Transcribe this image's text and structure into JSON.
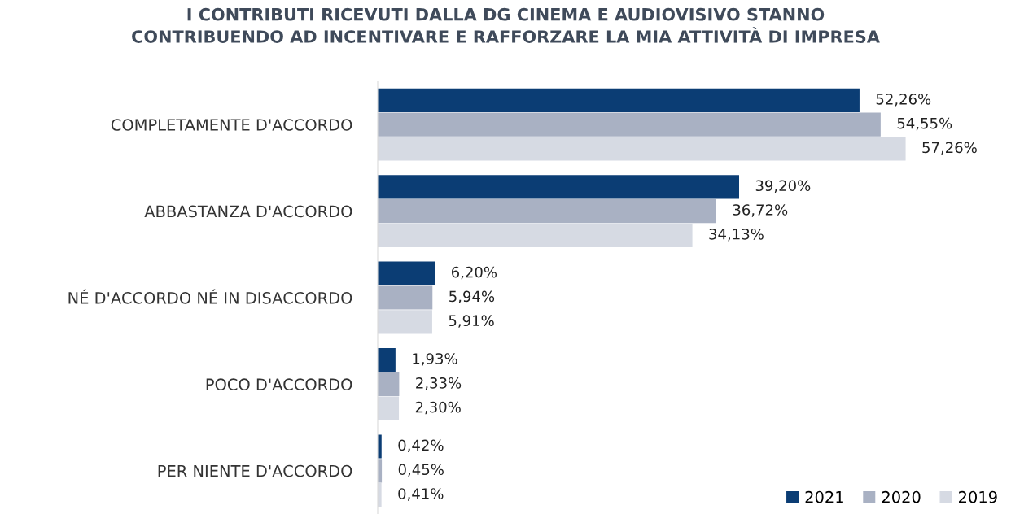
{
  "chart_data": {
    "type": "bar",
    "orientation": "horizontal",
    "title": "I CONTRIBUTI RICEVUTI DALLA DG CINEMA E AUDIOVISIVO STANNO\nCONTRIBUENDO AD INCENTIVARE E RAFFORZARE LA MIA ATTIVITÀ DI IMPRESA",
    "categories": [
      "COMPLETAMENTE D'ACCORDO",
      "ABBASTANZA D'ACCORDO",
      "NÉ D'ACCORDO NÉ IN DISACCORDO",
      "POCO D'ACCORDO",
      "PER NIENTE D'ACCORDO"
    ],
    "series": [
      {
        "name": "2021",
        "color": "#0b3d74",
        "values": [
          52.26,
          39.2,
          6.2,
          1.93,
          0.42
        ],
        "value_labels": [
          "52,26%",
          "39,20%",
          "6,20%",
          "1,93%",
          "0,42%"
        ]
      },
      {
        "name": "2020",
        "color": "#a9b1c3",
        "values": [
          54.55,
          36.72,
          5.94,
          2.33,
          0.45
        ],
        "value_labels": [
          "54,55%",
          "36,72%",
          "5,94%",
          "2,33%",
          "0,45%"
        ]
      },
      {
        "name": "2019",
        "color": "#d6dae3",
        "values": [
          57.26,
          34.13,
          5.91,
          2.3,
          0.41
        ],
        "value_labels": [
          "57,26%",
          "34,13%",
          "5,91%",
          "2,30%",
          "0,41%"
        ]
      }
    ],
    "legend": "bottom right",
    "grid": false
  }
}
